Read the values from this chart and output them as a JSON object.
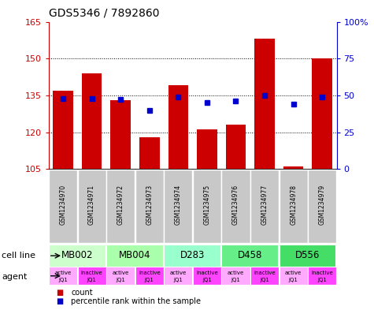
{
  "title": "GDS5346 / 7892860",
  "samples": [
    "GSM1234970",
    "GSM1234971",
    "GSM1234972",
    "GSM1234973",
    "GSM1234974",
    "GSM1234975",
    "GSM1234976",
    "GSM1234977",
    "GSM1234978",
    "GSM1234979"
  ],
  "bar_values": [
    137,
    144,
    133,
    118,
    139,
    121,
    123,
    158,
    106,
    150
  ],
  "blue_values": [
    48,
    48,
    47,
    40,
    49,
    45,
    46,
    50,
    44,
    49
  ],
  "ylim_left": [
    105,
    165
  ],
  "ylim_right": [
    0,
    100
  ],
  "yticks_left": [
    105,
    120,
    135,
    150,
    165
  ],
  "yticks_right": [
    0,
    25,
    50,
    75,
    100
  ],
  "bar_color": "#cc0000",
  "blue_color": "#0000cc",
  "cell_lines": [
    {
      "label": "MB002",
      "span": [
        0,
        2
      ],
      "color": "#ccffcc"
    },
    {
      "label": "MB004",
      "span": [
        2,
        4
      ],
      "color": "#aaffaa"
    },
    {
      "label": "D283",
      "span": [
        4,
        6
      ],
      "color": "#99ffcc"
    },
    {
      "label": "D458",
      "span": [
        6,
        8
      ],
      "color": "#66ee88"
    },
    {
      "label": "D556",
      "span": [
        8,
        10
      ],
      "color": "#44dd66"
    }
  ],
  "agent_colors": [
    "#ffaaff",
    "#ff44ff",
    "#ffaaff",
    "#ff44ff",
    "#ffaaff",
    "#ff44ff",
    "#ffaaff",
    "#ff44ff",
    "#ffaaff",
    "#ff44ff"
  ],
  "agent_labels_top": [
    "active",
    "inactive",
    "active",
    "inactive",
    "active",
    "inactive",
    "active",
    "inactive",
    "active",
    "inactive"
  ],
  "agent_labels_bot": [
    "JQ1",
    "JQ1",
    "JQ1",
    "JQ1",
    "JQ1",
    "JQ1",
    "JQ1",
    "JQ1",
    "JQ1",
    "JQ1"
  ],
  "grid_yticks": [
    120,
    135,
    150
  ],
  "bar_width": 0.7,
  "sample_bg_color": "#c8c8c8",
  "legend_count_color": "#cc0000",
  "legend_pct_color": "#0000cc",
  "fig_width": 4.75,
  "fig_height": 3.93,
  "fig_dpi": 100
}
